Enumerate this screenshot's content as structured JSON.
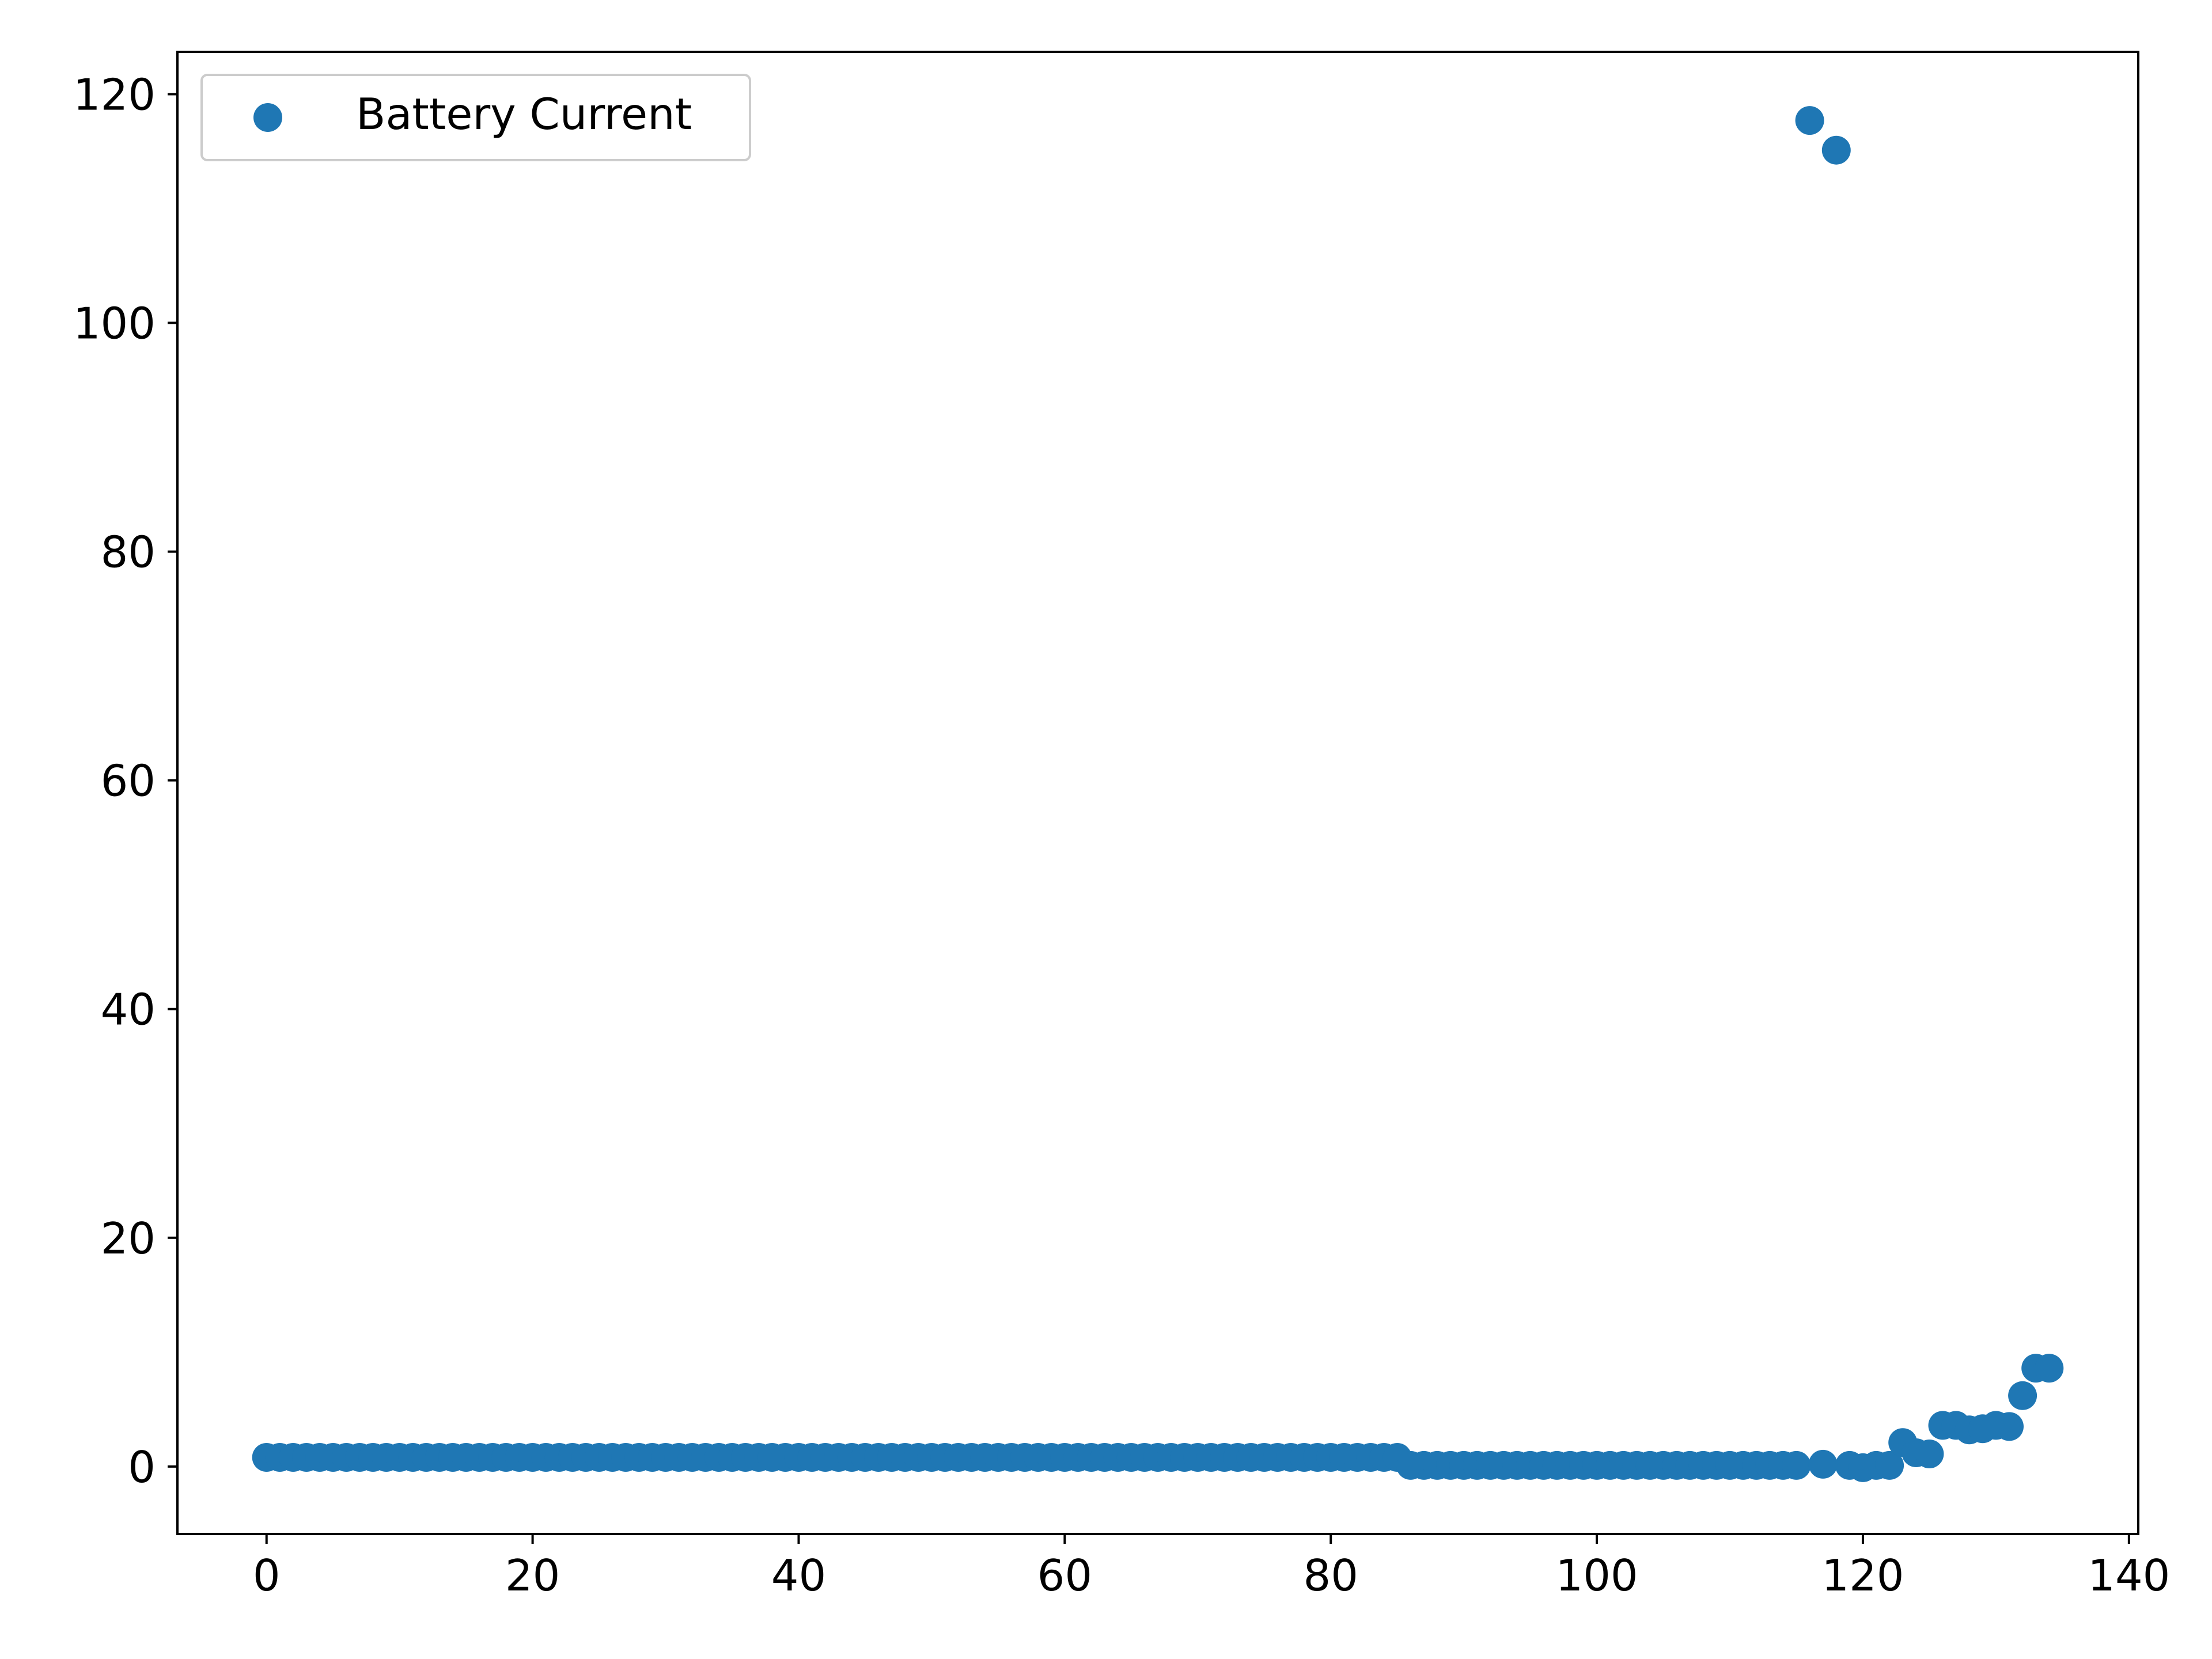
{
  "chart_data": {
    "type": "scatter",
    "title": "",
    "xlabel": "",
    "ylabel": "",
    "xlim": [
      -6.7,
      140.7
    ],
    "ylim": [
      -5.9,
      123.7
    ],
    "xticks": [
      0,
      20,
      40,
      60,
      80,
      100,
      120,
      140
    ],
    "yticks": [
      0,
      20,
      40,
      60,
      80,
      100,
      120
    ],
    "grid": false,
    "legend": {
      "placement": "top-left"
    },
    "series": [
      {
        "name": "Battery Current",
        "color": "#1f77b4",
        "marker": "circle",
        "x": [
          0,
          1,
          2,
          3,
          4,
          5,
          6,
          7,
          8,
          9,
          10,
          11,
          12,
          13,
          14,
          15,
          16,
          17,
          18,
          19,
          20,
          21,
          22,
          23,
          24,
          25,
          26,
          27,
          28,
          29,
          30,
          31,
          32,
          33,
          34,
          35,
          36,
          37,
          38,
          39,
          40,
          41,
          42,
          43,
          44,
          45,
          46,
          47,
          48,
          49,
          50,
          51,
          52,
          53,
          54,
          55,
          56,
          57,
          58,
          59,
          60,
          61,
          62,
          63,
          64,
          65,
          66,
          67,
          68,
          69,
          70,
          71,
          72,
          73,
          74,
          75,
          76,
          77,
          78,
          79,
          80,
          81,
          82,
          83,
          84,
          85,
          86,
          87,
          88,
          89,
          90,
          91,
          92,
          93,
          94,
          95,
          96,
          97,
          98,
          99,
          100,
          101,
          102,
          103,
          104,
          105,
          106,
          107,
          108,
          109,
          110,
          111,
          112,
          113,
          114,
          115,
          116,
          117,
          118,
          119,
          120,
          121,
          122,
          123,
          124,
          125,
          126,
          127,
          128,
          129,
          130,
          131,
          132,
          133,
          134
        ],
        "y": [
          0.8,
          0.8,
          0.8,
          0.8,
          0.8,
          0.8,
          0.8,
          0.8,
          0.8,
          0.8,
          0.8,
          0.8,
          0.8,
          0.8,
          0.8,
          0.8,
          0.8,
          0.8,
          0.8,
          0.8,
          0.8,
          0.8,
          0.8,
          0.8,
          0.8,
          0.8,
          0.8,
          0.8,
          0.8,
          0.8,
          0.8,
          0.8,
          0.8,
          0.8,
          0.8,
          0.8,
          0.8,
          0.8,
          0.8,
          0.8,
          0.8,
          0.8,
          0.8,
          0.8,
          0.8,
          0.8,
          0.8,
          0.8,
          0.8,
          0.8,
          0.8,
          0.8,
          0.8,
          0.8,
          0.8,
          0.8,
          0.8,
          0.8,
          0.8,
          0.8,
          0.8,
          0.8,
          0.8,
          0.8,
          0.8,
          0.8,
          0.8,
          0.8,
          0.8,
          0.8,
          0.8,
          0.8,
          0.8,
          0.8,
          0.8,
          0.8,
          0.8,
          0.8,
          0.8,
          0.8,
          0.8,
          0.8,
          0.8,
          0.8,
          0.8,
          0.8,
          0.1,
          0.1,
          0.1,
          0.1,
          0.1,
          0.1,
          0.1,
          0.1,
          0.1,
          0.1,
          0.1,
          0.1,
          0.1,
          0.1,
          0.1,
          0.1,
          0.1,
          0.1,
          0.1,
          0.1,
          0.1,
          0.1,
          0.1,
          0.1,
          0.1,
          0.1,
          0.1,
          0.1,
          0.1,
          0.1,
          117.7,
          0.2,
          115.1,
          0.1,
          -0.1,
          0.1,
          0.1,
          2.1,
          1.2,
          1.1,
          3.6,
          3.6,
          3.2,
          3.3,
          3.6,
          3.5,
          6.2,
          8.6,
          8.6
        ]
      }
    ]
  }
}
